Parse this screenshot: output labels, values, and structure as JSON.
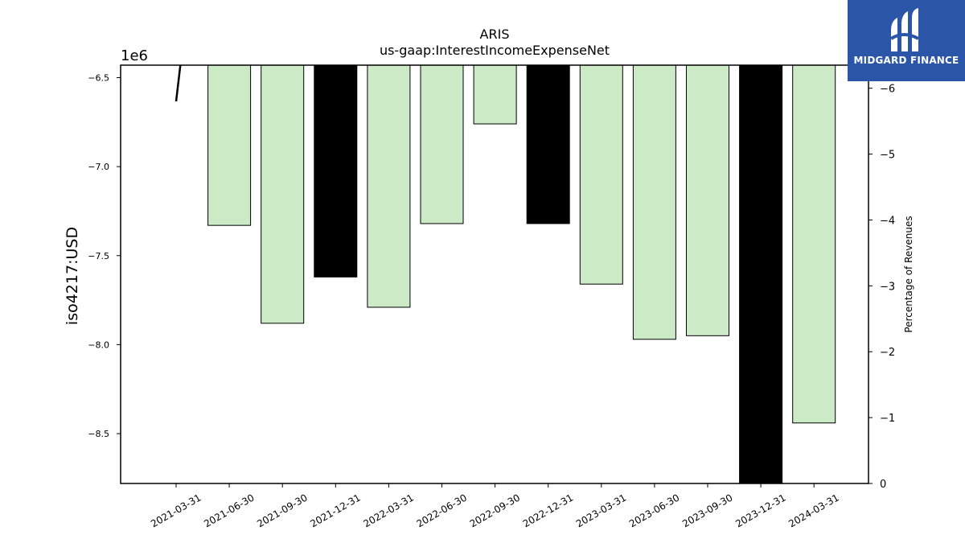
{
  "chart_data": {
    "type": "bar",
    "title": "ARIS",
    "subtitle": "us-gaap:InterestIncomeExpenseNet",
    "ylabel": "iso4217:USD",
    "y_offset_label": "1e6",
    "y2label": "Percentage of Revenues",
    "categories": [
      "2021-03-31",
      "2021-06-30",
      "2021-09-30",
      "2021-12-31",
      "2022-03-31",
      "2022-06-30",
      "2022-09-30",
      "2022-12-31",
      "2023-03-31",
      "2023-06-30",
      "2023-09-30",
      "2023-12-31",
      "2024-03-31"
    ],
    "values": [
      null,
      -7330000,
      -7880000,
      -7620000,
      -7790000,
      -7320000,
      -6760000,
      -7320000,
      -7660000,
      -7970000,
      -7950000,
      -8800000,
      -8440000
    ],
    "bar_colors": [
      "none",
      "#cdeac7",
      "#cdeac7",
      "#000000",
      "#cdeac7",
      "#cdeac7",
      "#cdeac7",
      "#000000",
      "#cdeac7",
      "#cdeac7",
      "#cdeac7",
      "#000000",
      "#cdeac7"
    ],
    "ylim": [
      -6.43,
      -8.78
    ],
    "y_ticks": [
      -6.5,
      -7.0,
      -7.5,
      -8.0,
      -8.5
    ],
    "y_tick_labels": [
      "−6.5",
      "−7.0",
      "−7.5",
      "−8.0",
      "−8.5"
    ],
    "y2lim": [
      -6.35,
      0
    ],
    "y2_ticks": [
      -6,
      -5,
      -4,
      -3,
      -2,
      -1,
      0
    ],
    "y2_tick_labels": [
      "−6",
      "−5",
      "−4",
      "−3",
      "−2",
      "−1",
      "0"
    ],
    "line_series": {
      "x_index": [
        0,
        0.08
      ],
      "y2": [
        -5.8,
        -6.35
      ],
      "color": "#000000"
    }
  },
  "logo": {
    "text": "MIDGARD FINANCE",
    "icon": "midgard-logo-icon"
  }
}
